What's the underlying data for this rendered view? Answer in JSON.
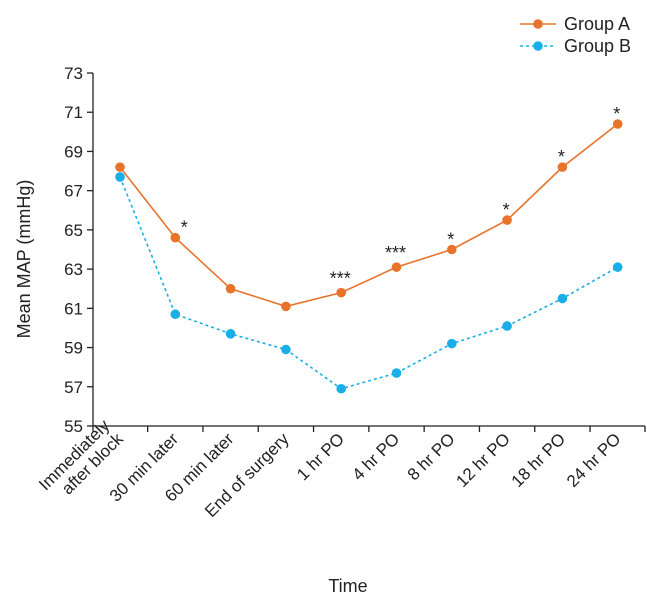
{
  "chart_data": {
    "type": "line",
    "title": "",
    "xlabel": "Time",
    "ylabel": "Mean MAP (mmHg)",
    "ylim": [
      55,
      73
    ],
    "yticks": [
      55,
      57,
      59,
      61,
      63,
      65,
      67,
      69,
      71,
      73
    ],
    "grid": false,
    "legend_position": "top-right",
    "categories": [
      [
        "Immediately",
        "after block"
      ],
      [
        "30 min later"
      ],
      [
        "60 min later"
      ],
      [
        "End of surgery"
      ],
      [
        "1 hr PO"
      ],
      [
        "4 hr PO"
      ],
      [
        "8 hr PO"
      ],
      [
        "12 hr PO"
      ],
      [
        "18 hr PO"
      ],
      [
        "24 hr PO"
      ]
    ],
    "series": [
      {
        "name": "Group A",
        "color": "#E8732A",
        "line_style": "solid",
        "values": [
          68.2,
          64.6,
          62.0,
          61.1,
          61.8,
          63.1,
          64.0,
          65.5,
          68.2,
          70.4
        ]
      },
      {
        "name": "Group B",
        "color": "#19AEE8",
        "line_style": "dotted",
        "values": [
          67.7,
          60.7,
          59.7,
          58.9,
          56.9,
          57.7,
          59.2,
          60.1,
          61.5,
          63.1
        ]
      }
    ],
    "annotations": [
      "",
      "*",
      "",
      "",
      "***",
      "***",
      "*",
      "*",
      "*",
      "*"
    ]
  }
}
